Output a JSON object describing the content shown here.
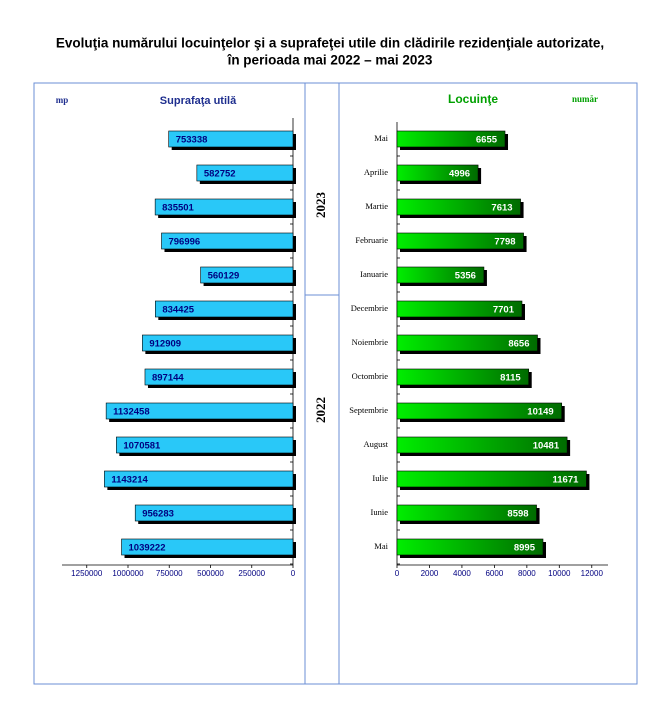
{
  "title": [
    "Evoluţia numărului locuinţelor şi a suprafeţei utile din clădirile rezidenţiale autorizate,",
    "în perioada mai 2022 – mai 2023"
  ],
  "year_labels": [
    "2023",
    "2022"
  ],
  "chart_data": [
    {
      "type": "bar",
      "title": "Suprafaţa utilă",
      "unit": "mp",
      "color": "#29c8f8",
      "text_color": "#000080",
      "x_reversed": true,
      "values": [
        753338,
        582752,
        835501,
        796996,
        560129,
        834425,
        912909,
        897144,
        1132458,
        1070581,
        1143214,
        956283,
        1039222
      ],
      "xlim": [
        0,
        1400000
      ],
      "xticks": [
        0,
        250000,
        500000,
        750000,
        1000000,
        1250000
      ]
    },
    {
      "type": "bar",
      "title": "Locuinţe",
      "unit": "număr",
      "color": "#00ee00",
      "text_color": "#ffffff",
      "x_reversed": false,
      "categories": [
        "Mai",
        "Aprilie",
        "Martie",
        "Februarie",
        "Ianuarie",
        "Decembrie",
        "Noiembrie",
        "Octombrie",
        "Septembrie",
        "August",
        "Iulie",
        "Iunie",
        "Mai"
      ],
      "values": [
        6655,
        4996,
        7613,
        7798,
        5356,
        7701,
        8656,
        8115,
        10149,
        10481,
        11671,
        8598,
        8995
      ],
      "xlim": [
        0,
        13000
      ],
      "xticks": [
        0,
        2000,
        4000,
        6000,
        8000,
        10000,
        12000
      ]
    }
  ]
}
